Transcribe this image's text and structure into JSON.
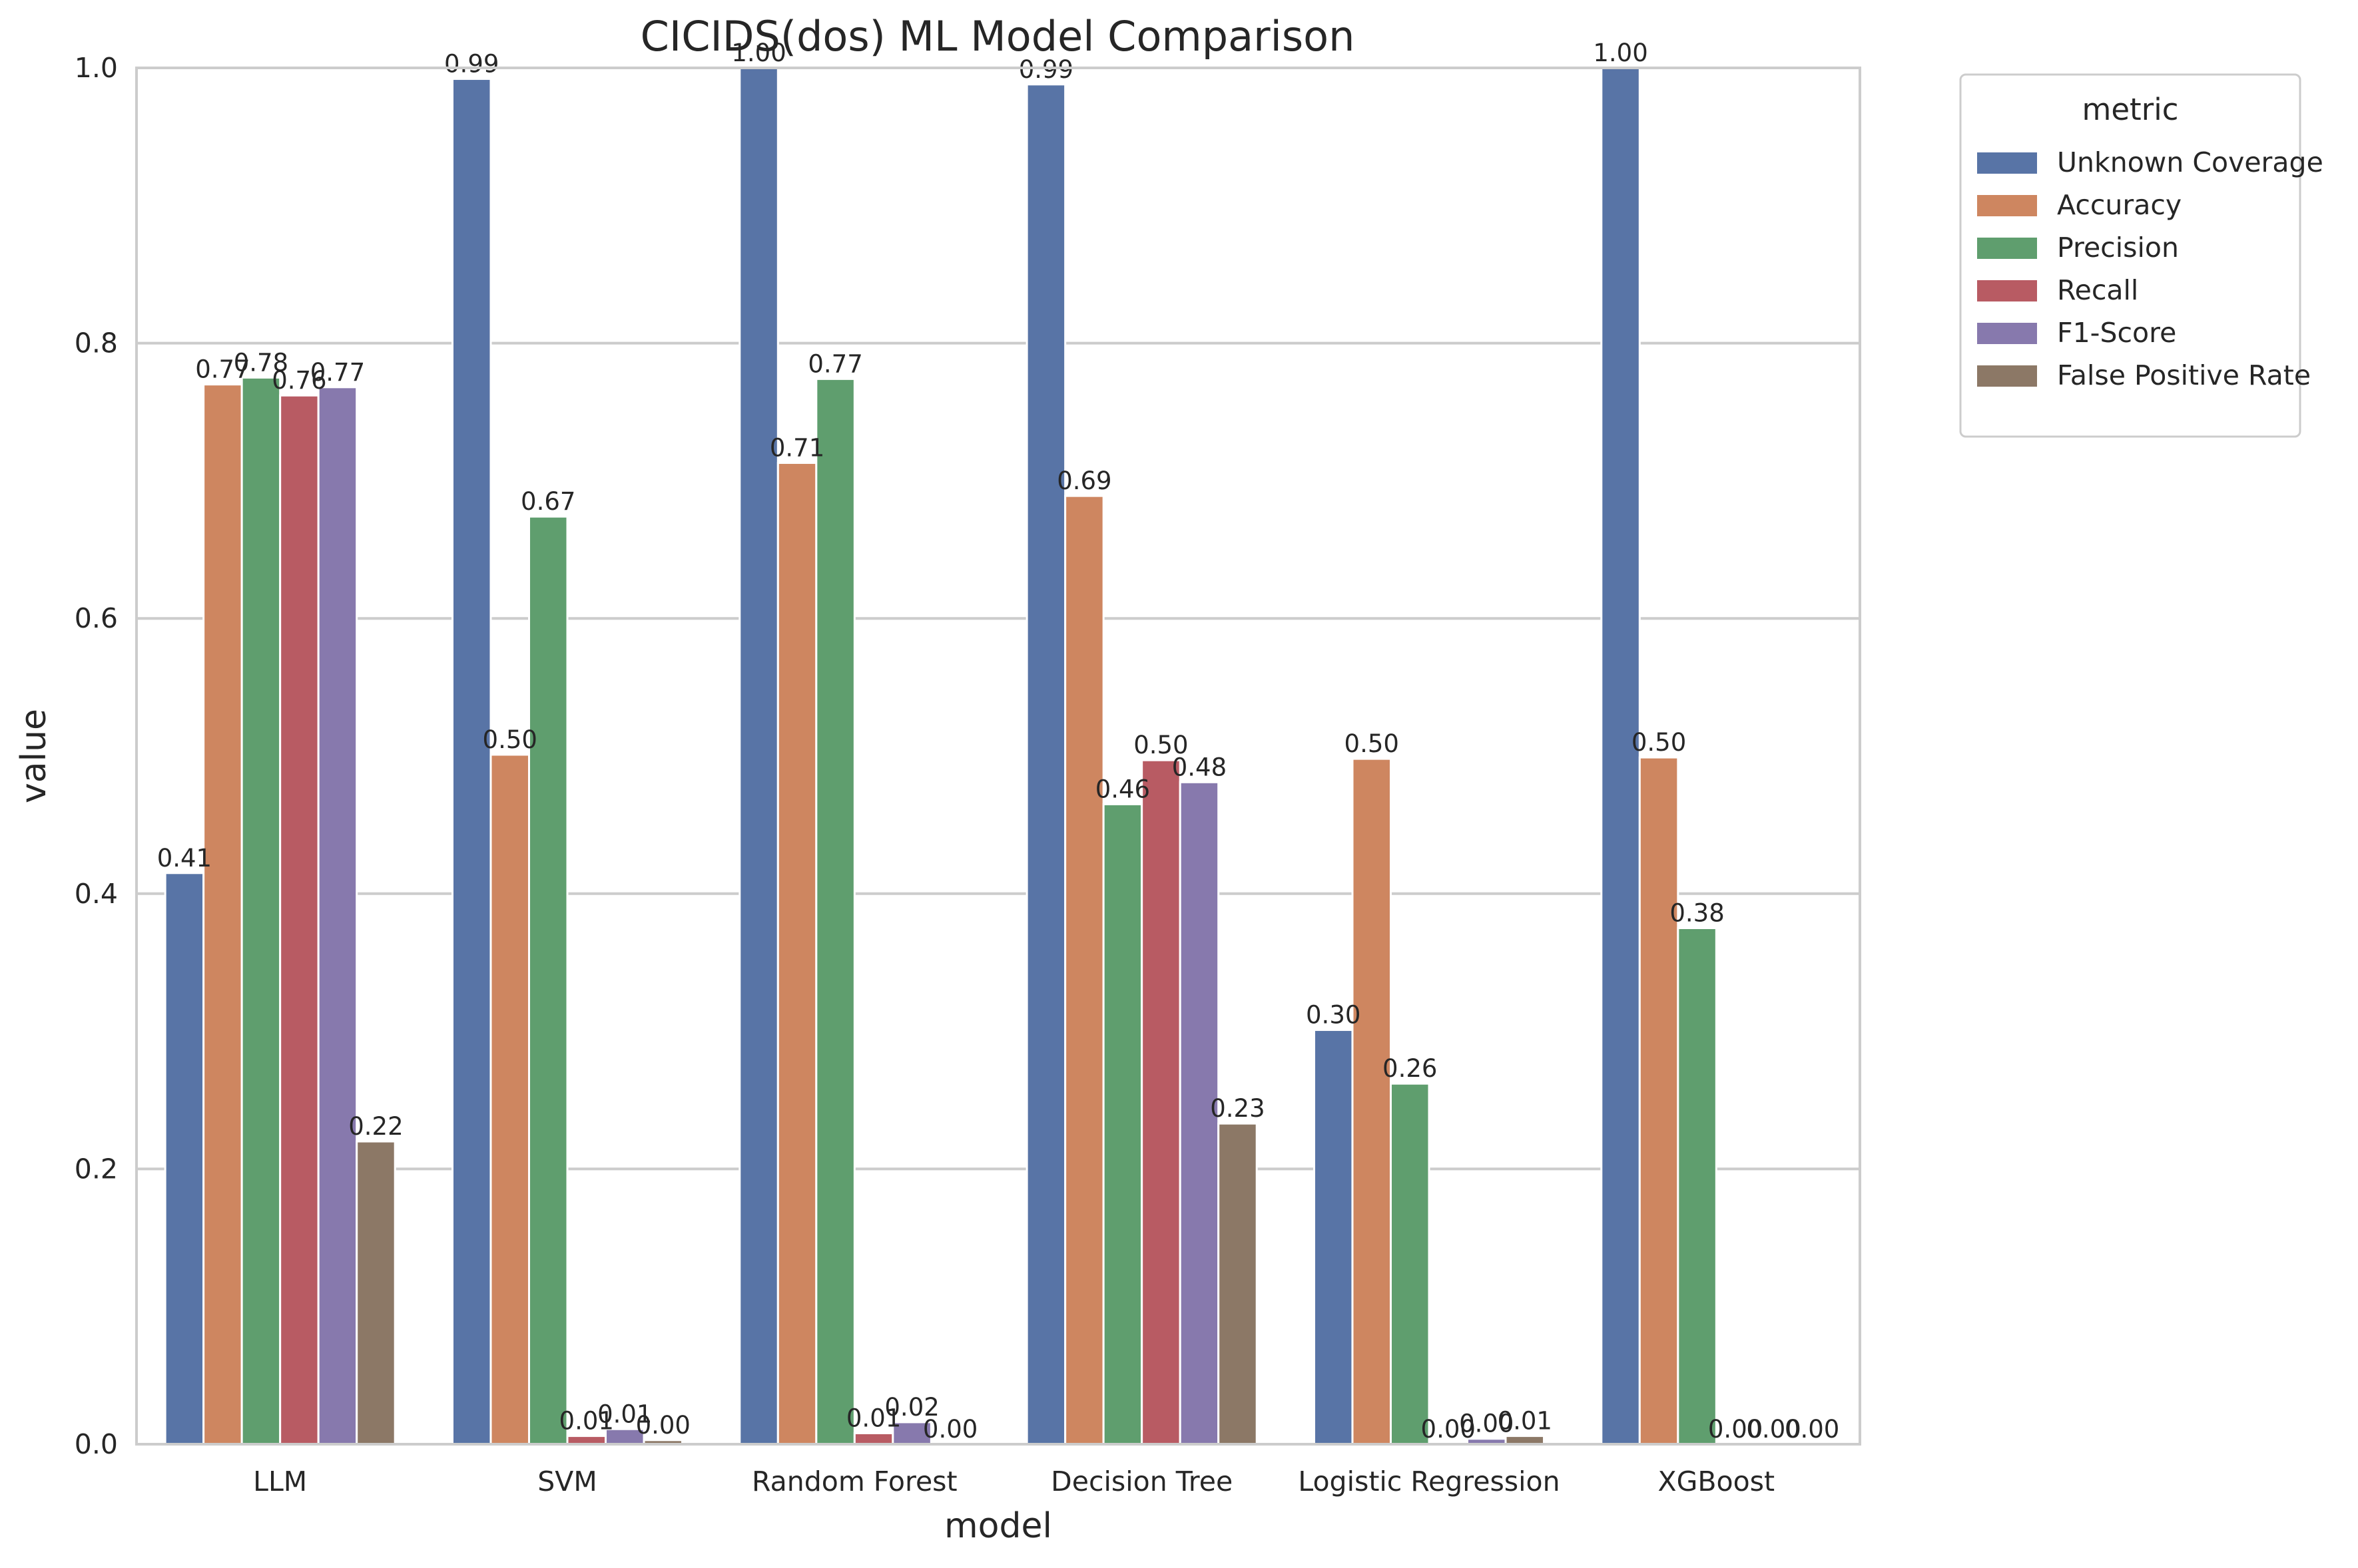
{
  "chart_data": {
    "type": "bar",
    "title": "CICIDS(dos) ML Model Comparison",
    "xlabel": "model",
    "ylabel": "value",
    "ylim": [
      0,
      1.0
    ],
    "yticks": [
      "0.0",
      "0.2",
      "0.4",
      "0.6",
      "0.8",
      "1.0"
    ],
    "grid": "y",
    "categories": [
      "LLM",
      "SVM",
      "Random Forest",
      "Decision Tree",
      "Logistic Regression",
      "XGBoost"
    ],
    "legend": {
      "title": "metric",
      "position": "outside-top-right"
    },
    "series": [
      {
        "name": "Unknown Coverage",
        "color": "#5874a6",
        "values": [
          0.415,
          0.992,
          1.0,
          0.988,
          0.301,
          1.0
        ],
        "labels": [
          "0.41",
          "0.99",
          "1.00",
          "0.99",
          "0.30",
          "1.00"
        ]
      },
      {
        "name": "Accuracy",
        "color": "#ce8660",
        "values": [
          0.77,
          0.501,
          0.713,
          0.689,
          0.498,
          0.499
        ],
        "labels": [
          "0.77",
          "0.50",
          "0.71",
          "0.69",
          "0.50",
          "0.50"
        ]
      },
      {
        "name": "Precision",
        "color": "#5f9e6e",
        "values": [
          0.775,
          0.674,
          0.774,
          0.465,
          0.262,
          0.375
        ],
        "labels": [
          "0.78",
          "0.67",
          "0.77",
          "0.46",
          "0.26",
          "0.38"
        ]
      },
      {
        "name": "Recall",
        "color": "#b85b63",
        "values": [
          0.762,
          0.006,
          0.008,
          0.497,
          0.0,
          0.0
        ],
        "labels": [
          "0.76",
          "0.01",
          "0.01",
          "0.50",
          "0.00",
          "0.00"
        ]
      },
      {
        "name": "F1-Score",
        "color": "#8779ad",
        "values": [
          0.768,
          0.011,
          0.016,
          0.481,
          0.004,
          0.0
        ],
        "labels": [
          "0.77",
          "0.01",
          "0.02",
          "0.48",
          "0.00",
          "0.00"
        ]
      },
      {
        "name": "False Positive Rate",
        "color": "#8c7866",
        "values": [
          0.22,
          0.003,
          0.0,
          0.233,
          0.006,
          0.0
        ],
        "labels": [
          "0.22",
          "0.00",
          "0.00",
          "0.23",
          "0.01",
          "0.00"
        ]
      }
    ]
  }
}
